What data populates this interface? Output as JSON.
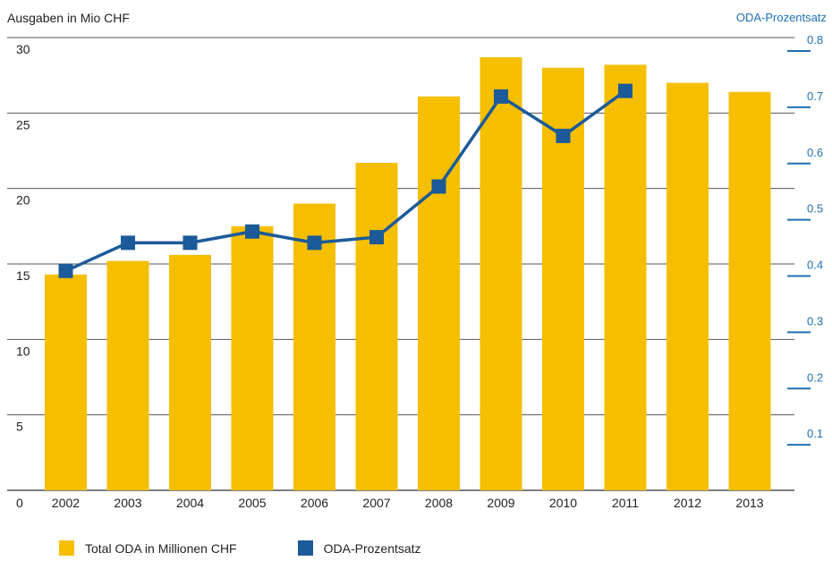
{
  "chart_data": {
    "type": "bar+line",
    "left_axis_label": "Ausgaben in Mio CHF",
    "right_axis_label": "ODA-Prozentsatz",
    "categories": [
      "2002",
      "2003",
      "2004",
      "2005",
      "2006",
      "2007",
      "2008",
      "2009",
      "2010",
      "2011",
      "2012",
      "2013"
    ],
    "series": [
      {
        "name": "Total ODA in Millionen CHF",
        "type": "bar",
        "axis": "left",
        "values": [
          14.3,
          15.2,
          15.6,
          17.5,
          19.0,
          21.7,
          26.1,
          28.7,
          28.0,
          28.2,
          27.0,
          26.4
        ]
      },
      {
        "name": "ODA-Prozentsatz",
        "type": "line",
        "axis": "right",
        "values": [
          0.39,
          0.44,
          0.44,
          0.46,
          0.44,
          0.45,
          0.54,
          0.7,
          0.63,
          0.71,
          null,
          null
        ]
      }
    ],
    "left_ylim": [
      0,
      30
    ],
    "left_ticks": [
      "0",
      "5",
      "10",
      "15",
      "20",
      "25",
      "30"
    ],
    "right_ylim": [
      0,
      0.8
    ],
    "right_ticks": [
      "0.1",
      "0.2",
      "0.3",
      "0.4",
      "0.5",
      "0.6",
      "0.7",
      "0.8"
    ],
    "grid": true,
    "legend_position": "bottom-left",
    "colors": {
      "bar": "#f5bf00",
      "line": "#1c5a99",
      "right_axis": "#1f6fb2",
      "grid": "#555555"
    }
  }
}
